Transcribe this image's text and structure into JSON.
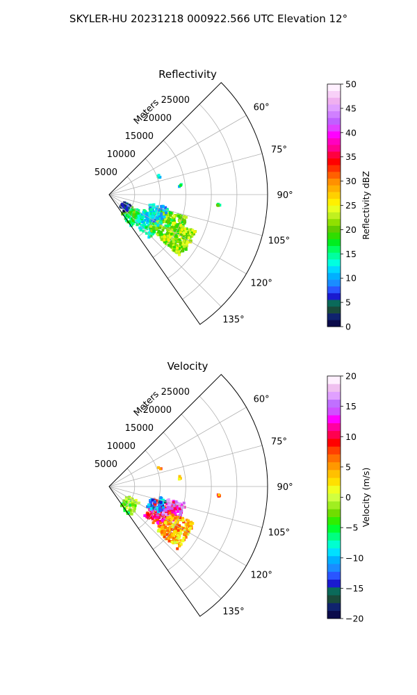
{
  "title": "SKYLER-HU  20231218  000922.566 UTC Elevation 12°",
  "chart_data": [
    {
      "type": "heatmap",
      "projection": "polar-sector",
      "title": "Reflectivity",
      "range_label": "Meters",
      "theta_min_deg": 45,
      "theta_max_deg": 145,
      "range_max": 31000,
      "radial_ticks": [
        5000,
        10000,
        15000,
        20000,
        25000
      ],
      "radial_tick_labels": [
        "5000",
        "10000",
        "15000",
        "20000",
        "25000"
      ],
      "angle_ticks": [
        60,
        75,
        90,
        105,
        120,
        135
      ],
      "angle_tick_labels": [
        "60°",
        "75°",
        "90°",
        "105°",
        "120°",
        "135°"
      ],
      "grid": true,
      "colorbar": {
        "label": "Reflectivity dBZ",
        "vmin": 0,
        "vmax": 50,
        "ticks": [
          0,
          5,
          10,
          15,
          20,
          25,
          30,
          35,
          40,
          45,
          50
        ],
        "tick_labels": [
          "0",
          "5",
          "10",
          "15",
          "20",
          "25",
          "30",
          "35",
          "40",
          "45",
          "50"
        ],
        "levels": [
          "#0a0a4a",
          "#10236e",
          "#1a4a3a",
          "#0a6a5a",
          "#1a1ad0",
          "#2a55ff",
          "#1a8cff",
          "#00b0ff",
          "#00d8ff",
          "#00ffe0",
          "#00ffa0",
          "#00ff60",
          "#00ee20",
          "#30dd00",
          "#60cc00",
          "#90e000",
          "#c0f020",
          "#e8ff20",
          "#fff000",
          "#ffd000",
          "#ffb000",
          "#ff9000",
          "#ff6000",
          "#ff3000",
          "#ff0000",
          "#ff0040",
          "#ff0090",
          "#ff00c0",
          "#ff00ff",
          "#e040ff",
          "#c060ff",
          "#d080ff",
          "#e0a0ff",
          "#f0b0f0",
          "#f8d0f8",
          "#fff0ff"
        ]
      },
      "echoes": [
        {
          "theta": 132,
          "r": 6000,
          "value": 17,
          "spread": 1500,
          "count": 80
        },
        {
          "theta": 125,
          "r": 9500,
          "value": 14,
          "spread": 2200,
          "count": 140
        },
        {
          "theta": 118,
          "r": 13000,
          "value": 20,
          "spread": 2800,
          "count": 220
        },
        {
          "theta": 122,
          "r": 16000,
          "value": 22,
          "spread": 2500,
          "count": 200
        },
        {
          "theta": 112,
          "r": 10000,
          "value": 12,
          "spread": 1800,
          "count": 90
        },
        {
          "theta": 127,
          "r": 4000,
          "value": 4,
          "spread": 800,
          "count": 30
        },
        {
          "theta": 95,
          "r": 21500,
          "value": 19,
          "spread": 300,
          "count": 6
        },
        {
          "theta": 70,
          "r": 10500,
          "value": 11,
          "spread": 300,
          "count": 4
        },
        {
          "theta": 83,
          "r": 14000,
          "value": 13,
          "spread": 300,
          "count": 3
        }
      ]
    },
    {
      "type": "heatmap",
      "projection": "polar-sector",
      "title": "Velocity",
      "range_label": "Meters",
      "theta_min_deg": 45,
      "theta_max_deg": 145,
      "range_max": 31000,
      "radial_ticks": [
        5000,
        10000,
        15000,
        20000,
        25000
      ],
      "radial_tick_labels": [
        "5000",
        "10000",
        "15000",
        "20000",
        "25000"
      ],
      "angle_ticks": [
        60,
        75,
        90,
        105,
        120,
        135
      ],
      "angle_tick_labels": [
        "60°",
        "75°",
        "90°",
        "105°",
        "120°",
        "135°"
      ],
      "grid": true,
      "colorbar": {
        "label": "Velocity (m/s)",
        "vmin": -20,
        "vmax": 20,
        "ticks": [
          -20,
          -15,
          -10,
          -5,
          0,
          5,
          10,
          15,
          20
        ],
        "tick_labels": [
          "−20",
          "−15",
          "−10",
          "−5",
          "0",
          "5",
          "10",
          "15",
          "20"
        ],
        "levels": [
          "#0a0a4a",
          "#10236e",
          "#1a4a3a",
          "#0a6a5a",
          "#1a1ad0",
          "#2a55ff",
          "#1a8cff",
          "#00b0ff",
          "#00e0ff",
          "#00ffd0",
          "#00ff80",
          "#00ff30",
          "#30ee00",
          "#70dd00",
          "#a0ee20",
          "#d0ff40",
          "#f0ff20",
          "#ffe000",
          "#ffc000",
          "#ff9800",
          "#ff7000",
          "#ff4000",
          "#ff0000",
          "#ff0050",
          "#ff00a0",
          "#ff00ff",
          "#d050ff",
          "#c070ff",
          "#e0a0ff",
          "#f0c0f0",
          "#fff0ff"
        ]
      },
      "echoes": [
        {
          "theta": 132,
          "r": 5500,
          "value": -2,
          "spread": 1500,
          "count": 80
        },
        {
          "theta": 117,
          "r": 11500,
          "value": 10,
          "spread": 2500,
          "count": 170
        },
        {
          "theta": 110,
          "r": 13500,
          "value": 14,
          "spread": 1800,
          "count": 90
        },
        {
          "theta": 123,
          "r": 15500,
          "value": 4,
          "spread": 2600,
          "count": 220
        },
        {
          "theta": 110,
          "r": 10000,
          "value": -12,
          "spread": 1500,
          "count": 50
        },
        {
          "theta": 95,
          "r": 21500,
          "value": 8,
          "spread": 300,
          "count": 5
        },
        {
          "theta": 70,
          "r": 10500,
          "value": 6,
          "spread": 300,
          "count": 3
        },
        {
          "theta": 83,
          "r": 14000,
          "value": 2,
          "spread": 300,
          "count": 3
        }
      ]
    }
  ]
}
